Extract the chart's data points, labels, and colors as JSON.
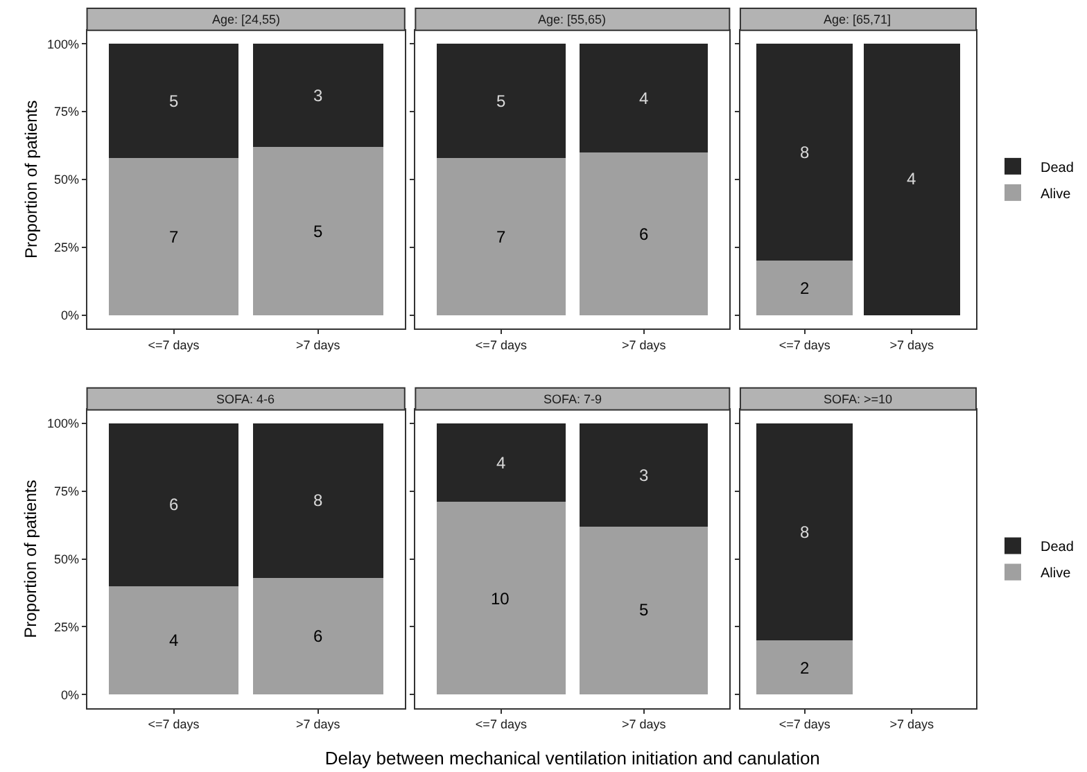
{
  "chart_data": [
    {
      "type": "bar",
      "title": "Age: [24,55)",
      "stacked": true,
      "categories": [
        "<=7 days",
        ">7 days"
      ],
      "ylabel": "Proportion of patients",
      "ylim": [
        -0.05,
        1.05
      ],
      "yticks": [
        {
          "value": 0,
          "label": "0%"
        },
        {
          "value": 0.25,
          "label": "25%"
        },
        {
          "value": 0.5,
          "label": "50%"
        },
        {
          "value": 0.75,
          "label": "75%"
        },
        {
          "value": 1,
          "label": "100%"
        }
      ],
      "legend": "right",
      "series": [
        {
          "name": "Alive",
          "color": "#a0a0a0",
          "values": [
            0.58,
            0.62
          ]
        },
        {
          "name": "Dead",
          "color": "#262626",
          "values": [
            0.42,
            0.38
          ]
        }
      ],
      "annotations": [
        "7",
        "5",
        "5",
        "3"
      ]
    },
    {
      "type": "bar",
      "title": "Age: [55,65)",
      "stacked": true,
      "categories": [
        "<=7 days",
        ">7 days"
      ],
      "ylim": [
        -0.05,
        1.05
      ],
      "yticks": [
        {
          "value": 0,
          "label": null
        },
        {
          "value": 0.25,
          "label": null
        },
        {
          "value": 0.5,
          "label": null
        },
        {
          "value": 0.75,
          "label": null
        },
        {
          "value": 1,
          "label": null
        }
      ],
      "tick_labels": "x",
      "series": [
        {
          "color": "#a0a0a0",
          "values": [
            0.58,
            0.6
          ]
        },
        {
          "color": "#262626",
          "values": [
            0.42,
            0.4
          ]
        }
      ],
      "annotations": [
        "7",
        "6",
        "5",
        "4"
      ]
    },
    {
      "type": "bar",
      "title": "Age: [65,71]",
      "stacked": true,
      "categories": [
        "<=7 days",
        ">7 days"
      ],
      "ylim": [
        -0.05,
        1.05
      ],
      "yticks": [
        {
          "value": 0,
          "label": null
        },
        {
          "value": 0.25,
          "label": null
        },
        {
          "value": 0.5,
          "label": null
        },
        {
          "value": 0.75,
          "label": null
        },
        {
          "value": 1,
          "label": null
        }
      ],
      "tick_labels": "x",
      "series": [
        {
          "color": "#a0a0a0",
          "values": [
            0.2,
            0
          ]
        },
        {
          "color": "#262626",
          "values": [
            0.8,
            1.0
          ]
        }
      ],
      "annotations": [
        "2",
        "8",
        "4"
      ]
    },
    {
      "type": "bar",
      "title": "SOFA: 4-6",
      "stacked": true,
      "categories": [
        "<=7 days",
        ">7 days"
      ],
      "ylabel": "Proportion of patients",
      "ylim": [
        -0.05,
        1.05
      ],
      "yticks": [
        {
          "value": 0,
          "label": "0%"
        },
        {
          "value": 0.25,
          "label": "25%"
        },
        {
          "value": 0.5,
          "label": "50%"
        },
        {
          "value": 0.75,
          "label": "75%"
        },
        {
          "value": 1,
          "label": "100%"
        }
      ],
      "legend": "right",
      "series": [
        {
          "name": "Alive",
          "color": "#a0a0a0",
          "values": [
            0.4,
            0.43
          ]
        },
        {
          "name": "Dead",
          "color": "#262626",
          "values": [
            0.6,
            0.57
          ]
        }
      ],
      "annotations": [
        "4",
        "6",
        "6",
        "8"
      ]
    },
    {
      "type": "bar",
      "title": "SOFA: 7-9",
      "stacked": true,
      "categories": [
        "<=7 days",
        ">7 days"
      ],
      "xlabel": "Delay between mechanical ventilation initiation and canulation",
      "ylim": [
        -0.05,
        1.05
      ],
      "yticks": [
        {
          "value": 0,
          "label": null
        },
        {
          "value": 0.25,
          "label": null
        },
        {
          "value": 0.5,
          "label": null
        },
        {
          "value": 0.75,
          "label": null
        },
        {
          "value": 1,
          "label": null
        }
      ],
      "tick_labels": "x",
      "series": [
        {
          "color": "#a0a0a0",
          "values": [
            0.71,
            0.62
          ]
        },
        {
          "color": "#262626",
          "values": [
            0.29,
            0.38
          ]
        }
      ],
      "annotations": [
        "10",
        "5",
        "4",
        "3"
      ]
    },
    {
      "type": "bar",
      "title": "SOFA: >=10",
      "stacked": true,
      "categories": [
        "<=7 days",
        ">7 days"
      ],
      "ylim": [
        -0.05,
        1.05
      ],
      "yticks": [
        {
          "value": 0,
          "label": null
        },
        {
          "value": 0.25,
          "label": null
        },
        {
          "value": 0.5,
          "label": null
        },
        {
          "value": 0.75,
          "label": null
        },
        {
          "value": 1,
          "label": null
        }
      ],
      "tick_labels": "x",
      "series": [
        {
          "color": "#a0a0a0",
          "values": [
            0.2,
            null
          ]
        },
        {
          "color": "#262626",
          "values": [
            0.8,
            null
          ]
        }
      ],
      "annotations": [
        "2",
        "8"
      ]
    }
  ]
}
